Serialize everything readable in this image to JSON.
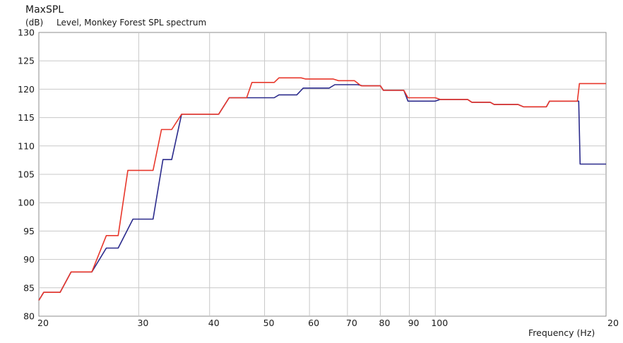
{
  "chart_data": {
    "type": "line",
    "title": "MaxSPL",
    "subtitle": "Level, Monkey Forest SPL spectrum",
    "ylabel": "(dB)",
    "xlabel": "Frequency  (Hz)",
    "x_scale": "log",
    "xlim": [
      20,
      200
    ],
    "ylim": [
      80,
      130
    ],
    "x_ticks": [
      20,
      30,
      40,
      50,
      60,
      70,
      80,
      90,
      100
    ],
    "x_tick_labels": [
      "20",
      "30",
      "40",
      "50",
      "60",
      "70",
      "80",
      "90",
      "100"
    ],
    "x_end_label": "20",
    "y_ticks": [
      80,
      85,
      90,
      95,
      100,
      105,
      110,
      115,
      120,
      125,
      130
    ],
    "grid": true,
    "series": [
      {
        "color": "#2b2b8c",
        "points": [
          [
            20,
            82.8
          ],
          [
            20.4,
            84.2
          ],
          [
            21.8,
            84.2
          ],
          [
            22.8,
            87.8
          ],
          [
            24.8,
            87.8
          ],
          [
            26.3,
            92.0
          ],
          [
            27.6,
            92.0
          ],
          [
            29.3,
            97.1
          ],
          [
            31.8,
            97.1
          ],
          [
            33.1,
            107.6
          ],
          [
            34.3,
            107.6
          ],
          [
            35.7,
            115.6
          ],
          [
            41.5,
            115.6
          ],
          [
            43.3,
            118.5
          ],
          [
            52.0,
            118.5
          ],
          [
            53.0,
            119.0
          ],
          [
            57.0,
            119.0
          ],
          [
            58.5,
            120.2
          ],
          [
            65.0,
            120.2
          ],
          [
            66.5,
            120.8
          ],
          [
            73.0,
            120.8
          ],
          [
            74.5,
            120.6
          ],
          [
            80.0,
            120.6
          ],
          [
            81.0,
            119.8
          ],
          [
            88.0,
            119.8
          ],
          [
            89.5,
            117.9
          ],
          [
            100.0,
            117.9
          ],
          [
            102.0,
            118.2
          ],
          [
            114.0,
            118.2
          ],
          [
            116.0,
            117.7
          ],
          [
            125.0,
            117.7
          ],
          [
            127.0,
            117.3
          ],
          [
            140.0,
            117.3
          ],
          [
            143.0,
            116.9
          ],
          [
            157.0,
            116.9
          ],
          [
            159.0,
            117.9
          ],
          [
            179.0,
            117.9
          ],
          [
            180.0,
            106.8
          ],
          [
            200.0,
            106.8
          ]
        ]
      },
      {
        "color": "#e8372b",
        "points": [
          [
            20,
            82.8
          ],
          [
            20.4,
            84.2
          ],
          [
            21.8,
            84.2
          ],
          [
            22.8,
            87.8
          ],
          [
            24.8,
            87.8
          ],
          [
            26.3,
            94.2
          ],
          [
            27.6,
            94.2
          ],
          [
            28.7,
            105.7
          ],
          [
            31.8,
            105.7
          ],
          [
            32.9,
            112.9
          ],
          [
            34.3,
            112.9
          ],
          [
            35.7,
            115.6
          ],
          [
            41.5,
            115.6
          ],
          [
            43.3,
            118.5
          ],
          [
            46.5,
            118.5
          ],
          [
            47.5,
            121.2
          ],
          [
            52.0,
            121.2
          ],
          [
            53.0,
            122.0
          ],
          [
            58.0,
            122.0
          ],
          [
            59.0,
            121.8
          ],
          [
            66.0,
            121.8
          ],
          [
            67.5,
            121.5
          ],
          [
            72.0,
            121.5
          ],
          [
            74.0,
            120.6
          ],
          [
            80.0,
            120.6
          ],
          [
            81.0,
            119.8
          ],
          [
            88.0,
            119.8
          ],
          [
            89.5,
            118.5
          ],
          [
            100.0,
            118.5
          ],
          [
            102.0,
            118.2
          ],
          [
            114.0,
            118.2
          ],
          [
            116.0,
            117.7
          ],
          [
            125.0,
            117.7
          ],
          [
            127.0,
            117.3
          ],
          [
            140.0,
            117.3
          ],
          [
            143.0,
            116.9
          ],
          [
            157.0,
            116.9
          ],
          [
            159.0,
            117.9
          ],
          [
            178.0,
            117.9
          ],
          [
            179.5,
            121.0
          ],
          [
            200.0,
            121.0
          ]
        ]
      }
    ]
  }
}
